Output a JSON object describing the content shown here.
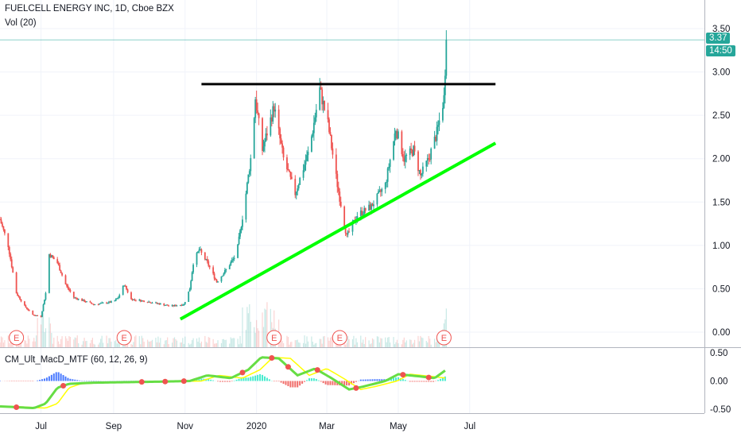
{
  "header": {
    "title": "FUELCELL ENERGY INC, 1D, Cboe BZX",
    "volume_label": "Vol (20)",
    "macd_label": "CM_Ult_MacD_MTF (60, 12, 26, 9)"
  },
  "price_tag": "3.37",
  "time_tag": "14:50",
  "earnings_marker": "E",
  "colors": {
    "up": "#26a69a",
    "down": "#ef5350",
    "trend_up": "#00ff00",
    "resistance": "#000000",
    "tag_bg": "#26a69a",
    "macd_hist_up": "#2962ff",
    "macd_hist_teal": "#26e8c5",
    "macd_signal": "#ffff00"
  },
  "chart_data": {
    "type": "candlestick",
    "title": "FUELCELL ENERGY INC, 1D, Cboe BZX",
    "x_ticks": [
      "Jul",
      "Sep",
      "Nov",
      "2020",
      "Mar",
      "May",
      "Jul"
    ],
    "price_axis": {
      "ticks": [
        "3.50",
        "3.00",
        "2.50",
        "2.00",
        "1.50",
        "1.00",
        "0.50",
        "0.00"
      ],
      "ylim": [
        0,
        3.5
      ]
    },
    "macd_axis": {
      "ticks": [
        "0.50",
        "0.00",
        "-0.50"
      ],
      "ylim": [
        -0.5,
        0.5
      ]
    },
    "last_price": 3.37,
    "price_anchors": [
      {
        "date": "2019-05-27",
        "p": 1.3
      },
      {
        "date": "2019-06-03",
        "p": 1.0
      },
      {
        "date": "2019-06-10",
        "p": 0.45
      },
      {
        "date": "2019-06-17",
        "p": 0.3
      },
      {
        "date": "2019-06-24",
        "p": 0.2
      },
      {
        "date": "2019-07-01",
        "p": 0.18
      },
      {
        "date": "2019-07-05",
        "p": 0.45
      },
      {
        "date": "2019-07-08",
        "p": 0.9
      },
      {
        "date": "2019-07-15",
        "p": 0.8
      },
      {
        "date": "2019-07-22",
        "p": 0.55
      },
      {
        "date": "2019-07-29",
        "p": 0.4
      },
      {
        "date": "2019-08-15",
        "p": 0.32
      },
      {
        "date": "2019-09-01",
        "p": 0.35
      },
      {
        "date": "2019-09-05",
        "p": 0.4
      },
      {
        "date": "2019-09-10",
        "p": 0.55
      },
      {
        "date": "2019-09-16",
        "p": 0.38
      },
      {
        "date": "2019-10-01",
        "p": 0.35
      },
      {
        "date": "2019-10-20",
        "p": 0.3
      },
      {
        "date": "2019-10-31",
        "p": 0.32
      },
      {
        "date": "2019-11-05",
        "p": 0.5
      },
      {
        "date": "2019-11-08",
        "p": 0.8
      },
      {
        "date": "2019-11-13",
        "p": 0.95
      },
      {
        "date": "2019-11-20",
        "p": 0.8
      },
      {
        "date": "2019-11-28",
        "p": 0.58
      },
      {
        "date": "2019-12-05",
        "p": 0.7
      },
      {
        "date": "2019-12-15",
        "p": 0.9
      },
      {
        "date": "2019-12-22",
        "p": 1.5
      },
      {
        "date": "2019-12-28",
        "p": 2.1
      },
      {
        "date": "2019-12-31",
        "p": 2.7
      },
      {
        "date": "2020-01-06",
        "p": 2.1
      },
      {
        "date": "2020-01-16",
        "p": 2.6
      },
      {
        "date": "2020-01-24",
        "p": 2.0
      },
      {
        "date": "2020-02-03",
        "p": 1.6
      },
      {
        "date": "2020-02-15",
        "p": 2.1
      },
      {
        "date": "2020-02-24",
        "p": 2.8
      },
      {
        "date": "2020-03-02",
        "p": 2.4
      },
      {
        "date": "2020-03-10",
        "p": 1.7
      },
      {
        "date": "2020-03-18",
        "p": 1.1
      },
      {
        "date": "2020-03-27",
        "p": 1.35
      },
      {
        "date": "2020-04-08",
        "p": 1.45
      },
      {
        "date": "2020-04-20",
        "p": 1.7
      },
      {
        "date": "2020-04-29",
        "p": 2.35
      },
      {
        "date": "2020-05-06",
        "p": 2.0
      },
      {
        "date": "2020-05-14",
        "p": 2.1
      },
      {
        "date": "2020-05-20",
        "p": 1.8
      },
      {
        "date": "2020-05-27",
        "p": 2.0
      },
      {
        "date": "2020-06-03",
        "p": 2.3
      },
      {
        "date": "2020-06-09",
        "p": 2.7
      },
      {
        "date": "2020-06-11",
        "p": 3.37
      }
    ],
    "earnings_dates": [
      "2019-06-10",
      "2019-09-10",
      "2020-01-16",
      "2020-03-12",
      "2020-06-09"
    ],
    "trendlines": [
      {
        "name": "support",
        "from": {
          "date": "2019-10-28",
          "p": 0.15
        },
        "to": {
          "date": "2020-07-23",
          "p": 2.18
        }
      },
      {
        "name": "resistance",
        "from": {
          "date": "2019-11-15",
          "p": 2.86
        },
        "to": {
          "date": "2020-07-23",
          "p": 2.86
        }
      }
    ],
    "macd_anchors": [
      {
        "date": "2019-05-27",
        "v": -0.45
      },
      {
        "date": "2019-06-25",
        "v": -0.48
      },
      {
        "date": "2019-07-05",
        "v": -0.4
      },
      {
        "date": "2019-07-15",
        "v": -0.12
      },
      {
        "date": "2019-07-25",
        "v": -0.05
      },
      {
        "date": "2019-08-15",
        "v": -0.03
      },
      {
        "date": "2019-09-15",
        "v": -0.02
      },
      {
        "date": "2019-10-15",
        "v": -0.01
      },
      {
        "date": "2019-11-05",
        "v": 0.0
      },
      {
        "date": "2019-11-20",
        "v": 0.1
      },
      {
        "date": "2019-12-10",
        "v": 0.05
      },
      {
        "date": "2019-12-25",
        "v": 0.2
      },
      {
        "date": "2020-01-05",
        "v": 0.42
      },
      {
        "date": "2020-01-20",
        "v": 0.4
      },
      {
        "date": "2020-02-05",
        "v": 0.1
      },
      {
        "date": "2020-02-20",
        "v": 0.22
      },
      {
        "date": "2020-03-05",
        "v": 0.05
      },
      {
        "date": "2020-03-20",
        "v": -0.15
      },
      {
        "date": "2020-04-01",
        "v": -0.1
      },
      {
        "date": "2020-04-20",
        "v": 0.0
      },
      {
        "date": "2020-05-01",
        "v": 0.12
      },
      {
        "date": "2020-05-20",
        "v": 0.08
      },
      {
        "date": "2020-06-01",
        "v": 0.05
      },
      {
        "date": "2020-06-11",
        "v": 0.2
      }
    ]
  }
}
